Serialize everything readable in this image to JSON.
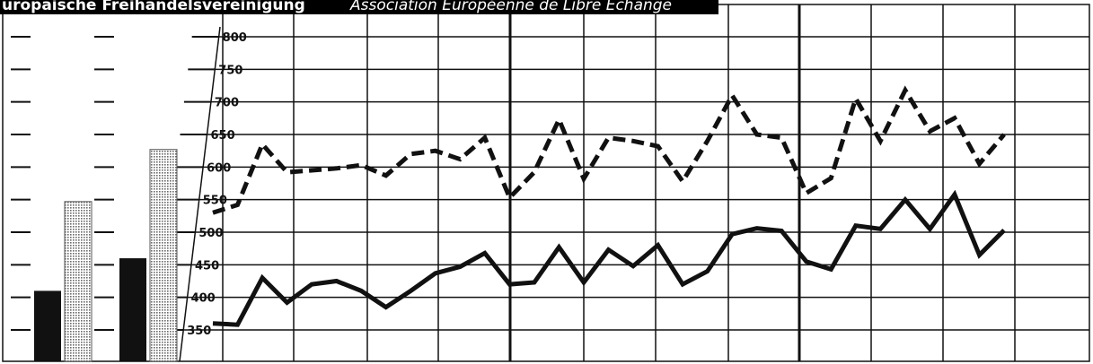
{
  "header": {
    "left_text": "uropäische  Freihandelsvereinigung",
    "right_text": "Association Européenne de Libre Échange"
  },
  "colors": {
    "ink": "#111111",
    "header_bg": "#000000",
    "header_fg": "#ffffff",
    "hatch": "#9a9a9a"
  },
  "chart_data": {
    "type": "line",
    "title": "",
    "xlabel": "",
    "ylabel": "",
    "ylim": [
      325,
      810
    ],
    "y_ticks": [
      350,
      400,
      450,
      500,
      550,
      600,
      650,
      700,
      750,
      800
    ],
    "grid": true,
    "series": [
      {
        "style": "solid",
        "values": [
          360,
          358,
          430,
          392,
          420,
          425,
          410,
          385,
          410,
          437,
          447,
          468,
          420,
          423,
          477,
          423,
          473,
          448,
          480,
          420,
          440,
          497,
          506,
          502,
          455,
          443,
          510,
          505,
          550,
          505,
          558,
          465,
          503
        ]
      },
      {
        "style": "dashed",
        "values": [
          530,
          542,
          635,
          592,
          595,
          598,
          603,
          587,
          620,
          625,
          612,
          645,
          553,
          592,
          673,
          582,
          645,
          640,
          632,
          578,
          640,
          710,
          650,
          645,
          560,
          583,
          705,
          640,
          718,
          655,
          675,
          605,
          650
        ]
      }
    ],
    "inset_bars": {
      "type": "bar",
      "groups": [
        {
          "solid": 410,
          "hatched": 547
        },
        {
          "solid": 460,
          "hatched": 627
        }
      ]
    }
  }
}
